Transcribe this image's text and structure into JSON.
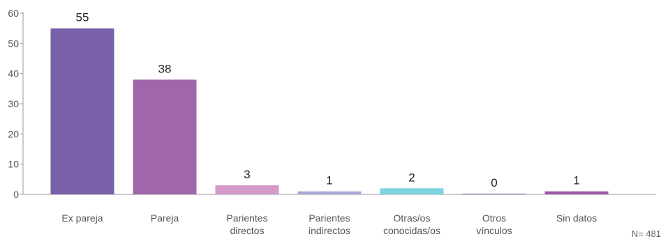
{
  "chart_data": {
    "type": "bar",
    "categories": [
      [
        "Ex pareja"
      ],
      [
        "Pareja"
      ],
      [
        "Parientes",
        "directos"
      ],
      [
        "Parientes",
        "indirectos"
      ],
      [
        "Otras/os",
        "conocidas/os"
      ],
      [
        "Otros",
        "vínculos"
      ],
      [
        "Sin datos"
      ]
    ],
    "values": [
      55,
      38,
      3,
      1,
      2,
      0,
      1
    ],
    "value_labels": [
      "55",
      "38",
      "3",
      "1",
      "2",
      "0",
      "1"
    ],
    "colors": [
      "#7960a8",
      "#a066aa",
      "#d49bc9",
      "#a9a8da",
      "#7bd4df",
      "#6f6fb0",
      "#9b59a7"
    ],
    "ylim": [
      0,
      60
    ],
    "yticks": [
      0,
      10,
      20,
      30,
      40,
      50,
      60
    ],
    "title": "",
    "xlabel": "",
    "ylabel": "",
    "grid": false,
    "note": "N= 481"
  }
}
